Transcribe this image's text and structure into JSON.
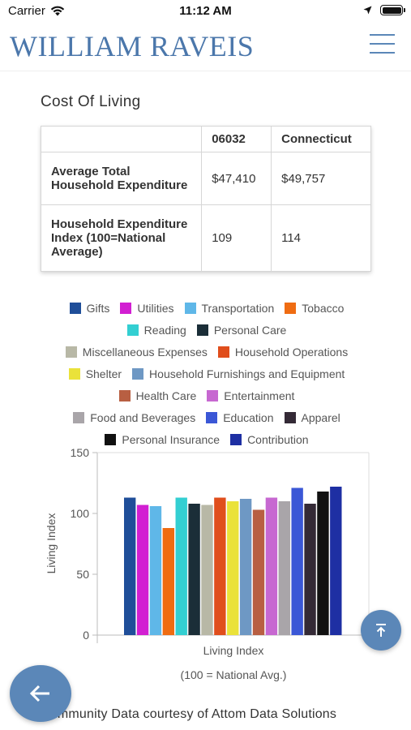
{
  "status_bar": {
    "carrier": "Carrier",
    "time": "11:12 AM"
  },
  "header": {
    "logo_text": "WILLIAM RAVEIS",
    "menu_icon": "hamburger-menu-icon"
  },
  "section": {
    "title": "Cost Of Living"
  },
  "table": {
    "headers": [
      "",
      "06032",
      "Connecticut"
    ],
    "rows": [
      {
        "label": "Average Total Household Expenditure",
        "zip_value": "$47,410",
        "state_value": "$49,757"
      },
      {
        "label": "Household Expenditure Index (100=National Average)",
        "zip_value": "109",
        "state_value": "114"
      }
    ]
  },
  "chart_data": {
    "type": "bar",
    "categories": [
      "Living Index"
    ],
    "xlabel": "Living Index",
    "subtitle": "(100 = National Avg.)",
    "ylabel": "Living Index",
    "ylim": [
      0,
      150
    ],
    "yticks": [
      0,
      50,
      100,
      150
    ],
    "grid": false,
    "legend_placement": "top",
    "series": [
      {
        "name": "Gifts",
        "color": "#1f4e99",
        "values": [
          113
        ]
      },
      {
        "name": "Utilities",
        "color": "#d21fd2",
        "values": [
          107
        ]
      },
      {
        "name": "Transportation",
        "color": "#5fb7e8",
        "values": [
          106
        ]
      },
      {
        "name": "Tobacco",
        "color": "#ef6c12",
        "values": [
          88
        ]
      },
      {
        "name": "Reading",
        "color": "#33cfd2",
        "values": [
          113
        ]
      },
      {
        "name": "Personal Care",
        "color": "#1b2e38",
        "values": [
          108
        ]
      },
      {
        "name": "Miscellaneous Expenses",
        "color": "#b8b8a6",
        "values": [
          107
        ]
      },
      {
        "name": "Household Operations",
        "color": "#e04e1c",
        "values": [
          113
        ]
      },
      {
        "name": "Shelter",
        "color": "#eae23a",
        "values": [
          110
        ]
      },
      {
        "name": "Household Furnishings and Equipment",
        "color": "#6e98c4",
        "values": [
          112
        ]
      },
      {
        "name": "Health Care",
        "color": "#b85f42",
        "values": [
          103
        ]
      },
      {
        "name": "Entertainment",
        "color": "#c768d1",
        "values": [
          113
        ]
      },
      {
        "name": "Food and Beverages",
        "color": "#a9a5a9",
        "values": [
          110
        ]
      },
      {
        "name": "Education",
        "color": "#3b57d6",
        "values": [
          121
        ]
      },
      {
        "name": "Apparel",
        "color": "#342a36",
        "values": [
          108
        ]
      },
      {
        "name": "Personal Insurance",
        "color": "#111111",
        "values": [
          118
        ]
      },
      {
        "name": "Contribution",
        "color": "#1e2fa3",
        "values": [
          122
        ]
      }
    ],
    "legend_rows": [
      [
        0,
        1,
        2,
        3
      ],
      [
        4,
        5
      ],
      [
        6,
        7
      ],
      [
        8,
        9
      ],
      [
        10,
        11
      ],
      [
        12,
        13,
        14
      ],
      [
        15,
        16
      ]
    ]
  },
  "buttons": {
    "scroll_top_icon": "arrow-up-to-line-icon",
    "back_icon": "arrow-left-icon"
  },
  "footer": {
    "credit": "Community Data courtesy of Attom Data Solutions"
  }
}
